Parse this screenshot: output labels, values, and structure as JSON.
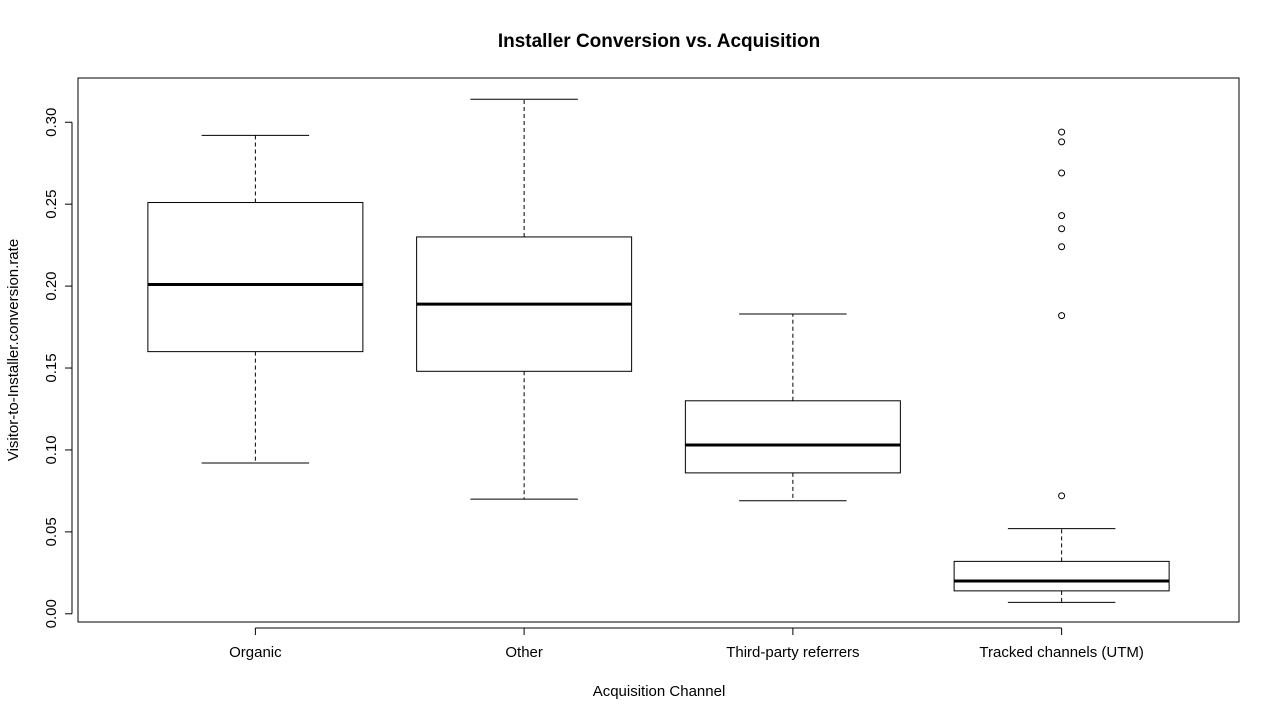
{
  "chart_data": {
    "type": "boxplot",
    "title": "Installer Conversion vs. Acquisition",
    "xlabel": "Acquisition Channel",
    "ylabel": "Visitor-to-Installer.conversion.rate",
    "ylim": [
      -0.005,
      0.327
    ],
    "yticks": [
      0.0,
      0.05,
      0.1,
      0.15,
      0.2,
      0.25,
      0.3
    ],
    "ytick_labels": [
      "0.00",
      "0.05",
      "0.10",
      "0.15",
      "0.20",
      "0.25",
      "0.30"
    ],
    "categories": [
      "Organic",
      "Other",
      "Third-party referrers",
      "Tracked channels (UTM)"
    ],
    "boxes": [
      {
        "category": "Organic",
        "whisker_low": 0.092,
        "q1": 0.16,
        "median": 0.201,
        "q3": 0.251,
        "whisker_high": 0.292,
        "outliers": []
      },
      {
        "category": "Other",
        "whisker_low": 0.07,
        "q1": 0.148,
        "median": 0.189,
        "q3": 0.23,
        "whisker_high": 0.314,
        "outliers": []
      },
      {
        "category": "Third-party referrers",
        "whisker_low": 0.069,
        "q1": 0.086,
        "median": 0.103,
        "q3": 0.13,
        "whisker_high": 0.183,
        "outliers": []
      },
      {
        "category": "Tracked channels (UTM)",
        "whisker_low": 0.007,
        "q1": 0.014,
        "median": 0.02,
        "q3": 0.032,
        "whisker_high": 0.052,
        "outliers": [
          0.072,
          0.182,
          0.224,
          0.235,
          0.243,
          0.269,
          0.288,
          0.294
        ]
      }
    ],
    "grid": false,
    "legend": "none"
  }
}
